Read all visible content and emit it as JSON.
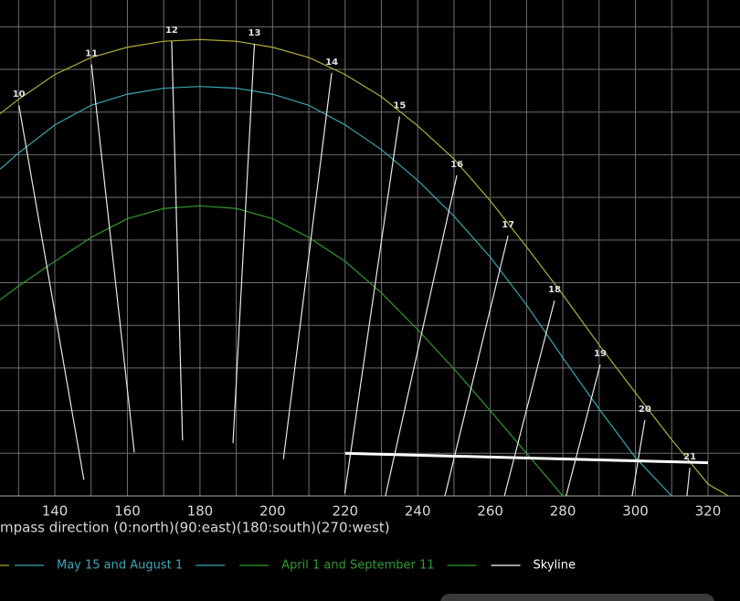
{
  "chart_data": {
    "type": "line",
    "x_label": "mpass direction (0:north)(90:east)(180:south)(270:west)",
    "xlim": [
      124.89,
      328.82
    ],
    "ylim": [
      0,
      58.14
    ],
    "xticks": [
      140,
      160,
      180,
      200,
      220,
      240,
      260,
      280,
      300,
      320
    ],
    "xgrid": [
      130,
      140,
      150,
      160,
      170,
      180,
      190,
      200,
      210,
      220,
      230,
      240,
      250,
      260,
      270,
      280,
      290,
      300,
      310,
      320
    ],
    "ygrid": [
      0,
      5,
      10,
      15,
      20,
      25,
      30,
      35,
      40,
      45,
      50,
      55
    ],
    "series": [
      {
        "color": "#b3ae3c",
        "x": [
          124.89,
          130,
          140,
          150,
          160,
          170,
          180,
          190,
          200,
          210,
          220,
          230,
          240,
          250,
          260,
          270,
          280,
          290,
          300,
          310,
          320,
          325.6
        ],
        "values": [
          44.8,
          46.5,
          49.4,
          51.4,
          52.6,
          53.3,
          53.5,
          53.3,
          52.6,
          51.4,
          49.4,
          46.8,
          43.4,
          39.5,
          34.6,
          29.2,
          23.6,
          17.7,
          12.1,
          6.6,
          1.4,
          0
        ]
      },
      {
        "name": "May 15 and August 1",
        "color": "#3ba7b2",
        "x": [
          124.89,
          130,
          140,
          150,
          160,
          170,
          180,
          190,
          200,
          210,
          220,
          230,
          240,
          250,
          260,
          270,
          280,
          290,
          300,
          310
        ],
        "values": [
          38.3,
          40.2,
          43.5,
          45.8,
          47.1,
          47.8,
          48.0,
          47.8,
          47.1,
          45.8,
          43.5,
          40.6,
          37.0,
          32.8,
          28.0,
          22.4,
          16.2,
          10.2,
          4.5,
          0
        ]
      },
      {
        "name": "April 1 and September 11",
        "color": "#2f9a2f",
        "x": [
          124.89,
          130,
          140,
          150,
          160,
          170,
          180,
          190,
          200,
          210,
          220,
          230,
          240,
          250,
          260,
          270,
          280
        ],
        "values": [
          23.0,
          24.6,
          27.5,
          30.3,
          32.5,
          33.7,
          34.0,
          33.7,
          32.5,
          30.3,
          27.5,
          23.8,
          19.5,
          14.9,
          10.0,
          5.0,
          0
        ]
      },
      {
        "name": "Skyline",
        "color": "#ffffff",
        "x": [
          220,
          320
        ],
        "values": [
          5.0,
          3.9
        ]
      }
    ],
    "hour_lines": [
      {
        "label": "10",
        "x": [
          130.1,
          148.0
        ],
        "values": [
          45.8,
          1.9
        ]
      },
      {
        "label": "11",
        "x": [
          150.1,
          161.9
        ],
        "values": [
          50.6,
          5.1
        ]
      },
      {
        "label": "12",
        "x": [
          172.2,
          175.2
        ],
        "values": [
          53.3,
          6.5
        ]
      },
      {
        "label": "13",
        "x": [
          195.0,
          189.1
        ],
        "values": [
          53.0,
          6.2
        ]
      },
      {
        "label": "14",
        "x": [
          216.3,
          203.0
        ],
        "values": [
          49.6,
          4.3
        ]
      },
      {
        "label": "15",
        "x": [
          235.0,
          219.9
        ],
        "values": [
          44.5,
          0.3
        ]
      },
      {
        "label": "16",
        "x": [
          250.8,
          231.1
        ],
        "values": [
          37.6,
          0
        ]
      },
      {
        "label": "17",
        "x": [
          264.9,
          247.5
        ],
        "values": [
          30.5,
          0
        ]
      },
      {
        "label": "18",
        "x": [
          277.7,
          263.9
        ],
        "values": [
          22.9,
          0
        ]
      },
      {
        "label": "19",
        "x": [
          290.3,
          280.9
        ],
        "values": [
          15.4,
          0
        ]
      },
      {
        "label": "20",
        "x": [
          302.6,
          299.1
        ],
        "values": [
          8.9,
          0
        ]
      },
      {
        "label": "21",
        "x": [
          315.0,
          314.2
        ],
        "values": [
          3.3,
          0
        ]
      }
    ]
  }
}
